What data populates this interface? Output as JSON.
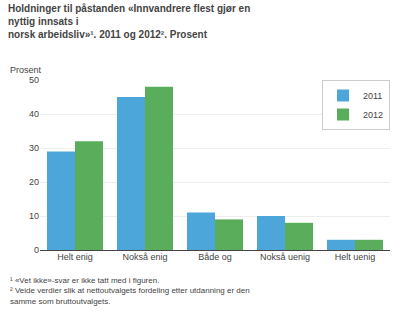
{
  "chart_data": {
    "type": "bar",
    "title": "Holdninger til påstanden «Innvandrere flest gjør en nyttig innsats i\nnorsk arbeidsliv»¹. 2011 og 2012². Prosent",
    "ylabel": "Prosent",
    "categories": [
      "Helt enig",
      "Nokså enig",
      "Både og",
      "Nokså uenig",
      "Helt uenig"
    ],
    "series": [
      {
        "name": "2011",
        "color": "#4da6d9",
        "values": [
          29,
          45,
          11,
          10,
          3
        ]
      },
      {
        "name": "2012",
        "color": "#5aad5a",
        "values": [
          32,
          48,
          9,
          8,
          3
        ]
      }
    ],
    "ylim": [
      0,
      50
    ],
    "yticks": [
      0,
      10,
      20,
      30,
      40,
      50
    ],
    "grid": true,
    "legend": "upper right",
    "annotations": [
      "¹ «Vet ikke»-svar er ikke tatt med i figuren.",
      "² Veide verdier slik at nettoutvalgets fordeling etter utdanning er den samme som bruttoutvalgets."
    ]
  }
}
